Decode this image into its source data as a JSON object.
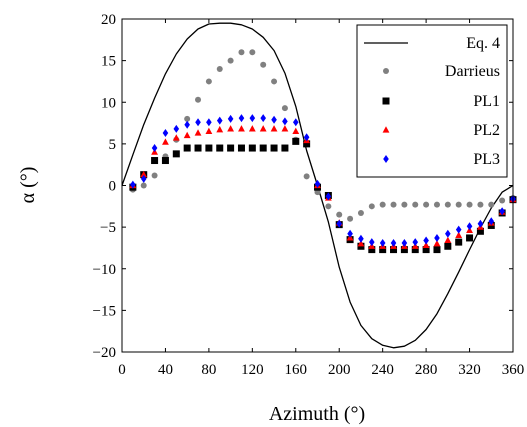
{
  "chart_data": {
    "type": "scatter",
    "xlabel": "Azimuth (°)",
    "ylabel": "α (°)",
    "xlim": [
      0,
      360
    ],
    "ylim": [
      -20,
      20
    ],
    "xticks": [
      0,
      40,
      80,
      120,
      160,
      200,
      240,
      280,
      320,
      360
    ],
    "yticks": [
      20,
      15,
      10,
      5,
      0,
      -5,
      -10,
      -15,
      -20
    ],
    "grid": false,
    "legend_position": "top-right",
    "series": [
      {
        "name": "Eq. 4",
        "kind": "line",
        "color": "#000000",
        "x": [
          0,
          10,
          20,
          30,
          40,
          50,
          60,
          70,
          80,
          90,
          100,
          110,
          120,
          130,
          140,
          150,
          160,
          170,
          180,
          190,
          200,
          210,
          220,
          230,
          240,
          250,
          260,
          270,
          280,
          290,
          300,
          310,
          320,
          330,
          340,
          350,
          360
        ],
        "values": [
          0,
          3.7,
          7.3,
          10.5,
          13.4,
          15.8,
          17.6,
          18.8,
          19.4,
          19.5,
          19.5,
          19.3,
          18.8,
          17.8,
          16.2,
          13.5,
          9.5,
          4.2,
          0,
          -4.4,
          -9.8,
          -14.0,
          -16.8,
          -18.4,
          -19.2,
          -19.5,
          -19.3,
          -18.6,
          -17.3,
          -15.4,
          -13.0,
          -10.4,
          -7.7,
          -5.1,
          -2.7,
          -0.8,
          0
        ]
      },
      {
        "name": "Darrieus",
        "kind": "marker",
        "marker": "circle",
        "color": "#808080",
        "x": [
          10,
          20,
          30,
          40,
          50,
          60,
          70,
          80,
          90,
          100,
          110,
          120,
          130,
          140,
          150,
          160,
          170,
          180,
          190,
          200,
          210,
          220,
          230,
          240,
          250,
          260,
          270,
          280,
          290,
          300,
          310,
          320,
          330,
          340,
          350,
          360
        ],
        "values": [
          -0.5,
          0,
          1.2,
          3.5,
          5.5,
          8.0,
          10.3,
          12.5,
          14.0,
          15.0,
          16.0,
          16.0,
          14.5,
          12.5,
          9.3,
          5.5,
          1.1,
          -0.8,
          -2.5,
          -3.5,
          -4.0,
          -3.3,
          -2.5,
          -2.3,
          -2.3,
          -2.3,
          -2.3,
          -2.3,
          -2.3,
          -2.3,
          -2.3,
          -2.3,
          -2.3,
          -2.3,
          -1.8,
          -1.5
        ]
      },
      {
        "name": "PL1",
        "kind": "marker",
        "marker": "square",
        "color": "#000000",
        "x": [
          10,
          20,
          30,
          40,
          50,
          60,
          70,
          80,
          90,
          100,
          110,
          120,
          130,
          140,
          150,
          160,
          170,
          180,
          190,
          200,
          210,
          220,
          230,
          240,
          250,
          260,
          270,
          280,
          290,
          300,
          310,
          320,
          330,
          340,
          350,
          360
        ],
        "values": [
          -0.2,
          1.3,
          3.0,
          3.0,
          3.8,
          4.5,
          4.5,
          4.5,
          4.5,
          4.5,
          4.5,
          4.5,
          4.5,
          4.5,
          4.5,
          5.3,
          5.0,
          -0.2,
          -1.2,
          -4.7,
          -6.5,
          -7.3,
          -7.7,
          -7.7,
          -7.7,
          -7.7,
          -7.7,
          -7.7,
          -7.7,
          -7.3,
          -6.8,
          -6.3,
          -5.5,
          -4.8,
          -3.3,
          -1.7
        ]
      },
      {
        "name": "PL2",
        "kind": "marker",
        "marker": "triangle",
        "color": "#ff0000",
        "x": [
          10,
          20,
          30,
          40,
          50,
          60,
          70,
          80,
          90,
          100,
          110,
          120,
          130,
          140,
          150,
          160,
          170,
          180,
          190,
          200,
          210,
          220,
          230,
          240,
          250,
          260,
          270,
          280,
          290,
          300,
          310,
          320,
          330,
          340,
          350,
          360
        ],
        "values": [
          0,
          1.3,
          4.0,
          5.2,
          5.7,
          6.0,
          6.3,
          6.5,
          6.7,
          6.8,
          6.8,
          6.8,
          6.8,
          6.8,
          6.8,
          6.5,
          5.4,
          0,
          -1.5,
          -4.5,
          -6.3,
          -7.0,
          -7.3,
          -7.3,
          -7.3,
          -7.3,
          -7.3,
          -7.2,
          -7.0,
          -6.6,
          -6.0,
          -5.4,
          -5.0,
          -4.5,
          -3.2,
          -1.7
        ]
      },
      {
        "name": "PL3",
        "kind": "marker",
        "marker": "diamond",
        "color": "#0000ff",
        "x": [
          10,
          20,
          30,
          40,
          50,
          60,
          70,
          80,
          90,
          100,
          110,
          120,
          130,
          140,
          150,
          160,
          170,
          180,
          190,
          200,
          210,
          220,
          230,
          240,
          250,
          260,
          270,
          280,
          290,
          300,
          310,
          320,
          330,
          340,
          350,
          360
        ],
        "values": [
          0.1,
          0.8,
          4.5,
          6.3,
          6.8,
          7.3,
          7.6,
          7.6,
          7.8,
          8.0,
          8.1,
          8.1,
          8.1,
          7.9,
          7.7,
          7.6,
          5.8,
          0.2,
          -1.3,
          -4.6,
          -5.8,
          -6.4,
          -6.8,
          -6.9,
          -6.9,
          -6.9,
          -6.8,
          -6.6,
          -6.3,
          -5.8,
          -5.3,
          -4.9,
          -4.6,
          -4.3,
          -3.1,
          -1.6
        ]
      }
    ]
  }
}
